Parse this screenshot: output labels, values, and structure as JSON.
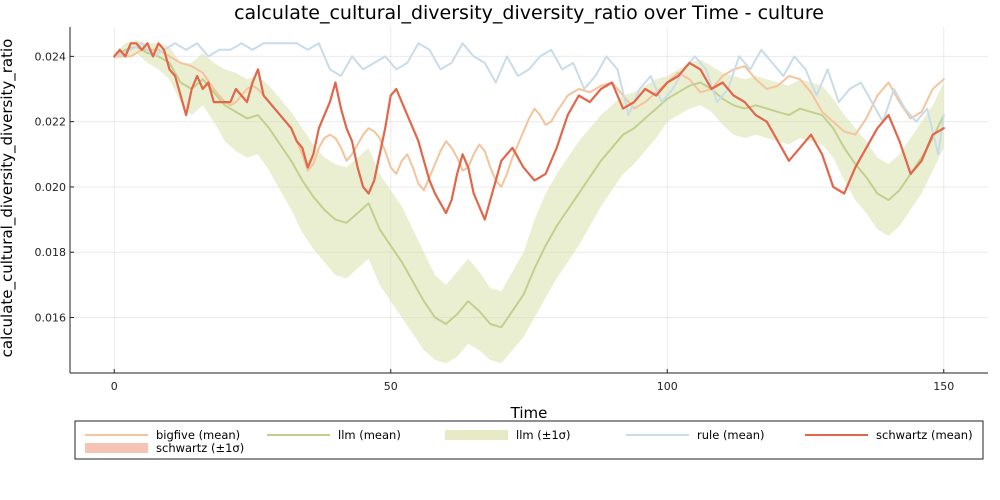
{
  "chart_data": {
    "type": "line",
    "title": "calculate_cultural_diversity_diversity_ratio over Time - culture",
    "xlabel": "Time",
    "ylabel": "calculate_cultural_diversity_diversity_ratio",
    "xlim": [
      -8,
      158
    ],
    "ylim": [
      0.0143,
      0.0249
    ],
    "xticks": [
      0,
      50,
      100,
      150
    ],
    "xtick_labels": [
      "0",
      "50",
      "100",
      "150"
    ],
    "yticks": [
      0.016,
      0.018,
      0.02,
      0.022,
      0.024
    ],
    "ytick_labels": [
      "0.016",
      "0.018",
      "0.020",
      "0.022",
      "0.024"
    ],
    "grid": true,
    "legend_position": "bottom",
    "series": [
      {
        "name": "bigfive (mean)",
        "color": "#f4c49c",
        "x": [
          0,
          3,
          5,
          8,
          10,
          12,
          14,
          15,
          16,
          18,
          20,
          21,
          22,
          23,
          24,
          25,
          26,
          27,
          28,
          29,
          30,
          31,
          32,
          33,
          34,
          35,
          36,
          37,
          38,
          39,
          40,
          41,
          42,
          43,
          44,
          45,
          46,
          47,
          48,
          49,
          50,
          51,
          52,
          53,
          54,
          55,
          56,
          57,
          58,
          59,
          60,
          61,
          62,
          63,
          64,
          65,
          66,
          67,
          68,
          69,
          70,
          71,
          72,
          73,
          74,
          75,
          76,
          77,
          78,
          79,
          80,
          82,
          84,
          86,
          88,
          90,
          92,
          94,
          96,
          98,
          100,
          102,
          104,
          106,
          108,
          110,
          112,
          114,
          116,
          118,
          120,
          122,
          124,
          126,
          128,
          130,
          132,
          134,
          136,
          138,
          140,
          142,
          144,
          146,
          148,
          150
        ],
        "values": [
          0.024,
          0.024,
          0.0242,
          0.0242,
          0.024,
          0.0238,
          0.0237,
          0.0236,
          0.0235,
          0.023,
          0.0226,
          0.0225,
          0.0226,
          0.0228,
          0.023,
          0.0231,
          0.023,
          0.0228,
          0.0226,
          0.0224,
          0.0222,
          0.022,
          0.0218,
          0.0214,
          0.021,
          0.0205,
          0.0207,
          0.0212,
          0.0215,
          0.0216,
          0.0215,
          0.0212,
          0.0208,
          0.021,
          0.0213,
          0.0216,
          0.0218,
          0.0217,
          0.0215,
          0.0211,
          0.0206,
          0.0204,
          0.0208,
          0.021,
          0.0206,
          0.0201,
          0.0199,
          0.0203,
          0.0207,
          0.0211,
          0.0214,
          0.0212,
          0.0209,
          0.0205,
          0.0206,
          0.021,
          0.0213,
          0.0211,
          0.0206,
          0.0202,
          0.02,
          0.0204,
          0.0209,
          0.0213,
          0.0217,
          0.0221,
          0.0224,
          0.0222,
          0.0219,
          0.022,
          0.0223,
          0.0228,
          0.023,
          0.0229,
          0.0231,
          0.0232,
          0.0228,
          0.0224,
          0.0226,
          0.0229,
          0.0232,
          0.0235,
          0.0233,
          0.0229,
          0.023,
          0.0234,
          0.0236,
          0.0237,
          0.0233,
          0.023,
          0.0231,
          0.0234,
          0.0233,
          0.0229,
          0.0223,
          0.022,
          0.0217,
          0.0216,
          0.0221,
          0.0228,
          0.0232,
          0.0226,
          0.0221,
          0.0223,
          0.023,
          0.0233
        ]
      },
      {
        "name": "llm (mean)",
        "color": "#c2d08e",
        "x": [
          0,
          2,
          4,
          6,
          8,
          10,
          12,
          14,
          16,
          18,
          20,
          22,
          24,
          26,
          28,
          30,
          32,
          34,
          36,
          38,
          40,
          42,
          44,
          46,
          48,
          50,
          52,
          54,
          56,
          58,
          60,
          62,
          64,
          66,
          68,
          70,
          72,
          74,
          76,
          78,
          80,
          82,
          84,
          86,
          88,
          90,
          92,
          94,
          96,
          98,
          100,
          102,
          104,
          106,
          108,
          110,
          112,
          114,
          116,
          118,
          120,
          122,
          124,
          126,
          128,
          130,
          132,
          134,
          136,
          138,
          140,
          142,
          144,
          146,
          148,
          150
        ],
        "values": [
          0.024,
          0.0242,
          0.0243,
          0.0241,
          0.024,
          0.0238,
          0.0232,
          0.023,
          0.0233,
          0.0229,
          0.0225,
          0.0223,
          0.0221,
          0.0222,
          0.0218,
          0.0213,
          0.0208,
          0.0202,
          0.0197,
          0.0193,
          0.019,
          0.0189,
          0.0192,
          0.0195,
          0.0187,
          0.0182,
          0.0177,
          0.0171,
          0.0165,
          0.016,
          0.0158,
          0.0161,
          0.0165,
          0.0162,
          0.0158,
          0.0157,
          0.0162,
          0.0167,
          0.0175,
          0.0182,
          0.0188,
          0.0193,
          0.0198,
          0.0203,
          0.0208,
          0.0212,
          0.0216,
          0.0218,
          0.0221,
          0.0224,
          0.0227,
          0.0229,
          0.0231,
          0.0232,
          0.023,
          0.0227,
          0.0225,
          0.0224,
          0.0225,
          0.0224,
          0.0223,
          0.0222,
          0.0224,
          0.0223,
          0.0222,
          0.0218,
          0.0212,
          0.0207,
          0.0203,
          0.0198,
          0.0196,
          0.0199,
          0.0204,
          0.0209,
          0.0215,
          0.0222
        ]
      },
      {
        "name": "rule (mean)",
        "color": "#c9dcea",
        "x": [
          0,
          3,
          5,
          7,
          9,
          11,
          13,
          15,
          17,
          19,
          21,
          23,
          25,
          27,
          29,
          31,
          33,
          35,
          37,
          39,
          41,
          43,
          45,
          47,
          49,
          51,
          53,
          55,
          57,
          59,
          61,
          63,
          65,
          67,
          69,
          71,
          73,
          75,
          77,
          79,
          81,
          83,
          85,
          87,
          89,
          91,
          93,
          95,
          97,
          99,
          101,
          103,
          105,
          107,
          109,
          111,
          113,
          115,
          117,
          119,
          121,
          123,
          125,
          127,
          129,
          131,
          133,
          135,
          137,
          139,
          141,
          143,
          145,
          147,
          149,
          150
        ],
        "values": [
          0.024,
          0.0242,
          0.0244,
          0.024,
          0.0242,
          0.0244,
          0.0242,
          0.0244,
          0.024,
          0.0242,
          0.0242,
          0.0244,
          0.0242,
          0.0244,
          0.0244,
          0.0244,
          0.0244,
          0.0242,
          0.0244,
          0.0236,
          0.0234,
          0.024,
          0.0236,
          0.0238,
          0.024,
          0.0236,
          0.0238,
          0.0244,
          0.0242,
          0.0236,
          0.0238,
          0.0244,
          0.024,
          0.0238,
          0.0232,
          0.024,
          0.0234,
          0.0236,
          0.024,
          0.0242,
          0.0236,
          0.0238,
          0.023,
          0.0234,
          0.024,
          0.0236,
          0.0222,
          0.023,
          0.0234,
          0.0226,
          0.023,
          0.0236,
          0.024,
          0.0236,
          0.0226,
          0.023,
          0.024,
          0.0236,
          0.0242,
          0.0238,
          0.0234,
          0.024,
          0.0236,
          0.0228,
          0.0236,
          0.0226,
          0.023,
          0.0232,
          0.0226,
          0.022,
          0.023,
          0.0224,
          0.022,
          0.0224,
          0.021,
          0.0222
        ]
      },
      {
        "name": "schwartz (mean)",
        "color": "#e2664a",
        "x": [
          0,
          1,
          2,
          3,
          4,
          5,
          6,
          7,
          8,
          9,
          10,
          11,
          12,
          13,
          14,
          15,
          16,
          17,
          18,
          19,
          20,
          21,
          22,
          23,
          24,
          25,
          26,
          27,
          28,
          29,
          30,
          31,
          32,
          33,
          34,
          35,
          36,
          37,
          38,
          39,
          40,
          41,
          42,
          43,
          44,
          45,
          46,
          47,
          48,
          49,
          50,
          51,
          52,
          53,
          54,
          55,
          56,
          57,
          58,
          59,
          60,
          61,
          62,
          63,
          64,
          65,
          66,
          67,
          68,
          69,
          70,
          72,
          74,
          76,
          78,
          80,
          82,
          84,
          86,
          88,
          90,
          92,
          94,
          96,
          98,
          100,
          102,
          104,
          106,
          108,
          110,
          112,
          114,
          116,
          118,
          120,
          122,
          124,
          126,
          128,
          130,
          132,
          134,
          136,
          138,
          140,
          142,
          144,
          146,
          148,
          150
        ],
        "values": [
          0.024,
          0.0242,
          0.024,
          0.0244,
          0.0244,
          0.0242,
          0.0244,
          0.024,
          0.0244,
          0.0242,
          0.0236,
          0.0234,
          0.0228,
          0.0222,
          0.023,
          0.0234,
          0.023,
          0.0232,
          0.0226,
          0.0226,
          0.0226,
          0.0226,
          0.023,
          0.0228,
          0.0226,
          0.0232,
          0.0236,
          0.0228,
          0.0226,
          0.0224,
          0.0222,
          0.022,
          0.0218,
          0.0214,
          0.0212,
          0.0206,
          0.021,
          0.0218,
          0.0222,
          0.0226,
          0.0232,
          0.0224,
          0.0218,
          0.0214,
          0.0206,
          0.02,
          0.0198,
          0.0202,
          0.021,
          0.0218,
          0.0228,
          0.023,
          0.0226,
          0.0222,
          0.0218,
          0.0214,
          0.0208,
          0.0202,
          0.0198,
          0.0195,
          0.0192,
          0.0196,
          0.0204,
          0.021,
          0.0206,
          0.0198,
          0.0194,
          0.019,
          0.0196,
          0.0202,
          0.0208,
          0.0212,
          0.0206,
          0.0202,
          0.0204,
          0.0212,
          0.0222,
          0.0228,
          0.0226,
          0.023,
          0.0232,
          0.0224,
          0.0226,
          0.023,
          0.0228,
          0.0232,
          0.0234,
          0.0238,
          0.0236,
          0.023,
          0.0232,
          0.0228,
          0.0226,
          0.0222,
          0.022,
          0.0214,
          0.0208,
          0.0212,
          0.0216,
          0.021,
          0.02,
          0.0198,
          0.0206,
          0.0212,
          0.0218,
          0.0222,
          0.0214,
          0.0204,
          0.0208,
          0.0216,
          0.0218
        ]
      }
    ],
    "bands": [
      {
        "name": "llm (±1σ)",
        "color": "#d7e0a6",
        "opacity": 0.5,
        "x": [
          0,
          2,
          4,
          6,
          8,
          10,
          12,
          14,
          16,
          18,
          20,
          22,
          24,
          26,
          28,
          30,
          32,
          34,
          36,
          38,
          40,
          42,
          44,
          46,
          48,
          50,
          52,
          54,
          56,
          58,
          60,
          62,
          64,
          66,
          68,
          70,
          72,
          74,
          76,
          78,
          80,
          82,
          84,
          86,
          88,
          90,
          92,
          94,
          96,
          98,
          100,
          102,
          104,
          106,
          108,
          110,
          112,
          114,
          116,
          118,
          120,
          122,
          124,
          126,
          128,
          130,
          132,
          134,
          136,
          138,
          140,
          142,
          144,
          146,
          148,
          150
        ],
        "lower": [
          0.0239,
          0.024,
          0.0241,
          0.0238,
          0.0236,
          0.0233,
          0.0226,
          0.0222,
          0.0225,
          0.022,
          0.0214,
          0.0211,
          0.0209,
          0.021,
          0.0205,
          0.0199,
          0.0193,
          0.0186,
          0.0181,
          0.0177,
          0.0173,
          0.0172,
          0.0175,
          0.0178,
          0.017,
          0.0165,
          0.016,
          0.0155,
          0.015,
          0.0147,
          0.0146,
          0.0148,
          0.0152,
          0.015,
          0.0147,
          0.0146,
          0.015,
          0.0154,
          0.016,
          0.0166,
          0.0172,
          0.0177,
          0.0182,
          0.0188,
          0.0194,
          0.0199,
          0.0204,
          0.0207,
          0.0211,
          0.0215,
          0.022,
          0.0222,
          0.0224,
          0.0225,
          0.0223,
          0.0219,
          0.0216,
          0.0215,
          0.0216,
          0.0215,
          0.0214,
          0.0213,
          0.0215,
          0.0214,
          0.0213,
          0.0209,
          0.0202,
          0.0196,
          0.0192,
          0.0187,
          0.0185,
          0.0188,
          0.0193,
          0.0198,
          0.0205,
          0.0212
        ],
        "upper": [
          0.0241,
          0.0244,
          0.0245,
          0.0244,
          0.0244,
          0.0243,
          0.0238,
          0.0238,
          0.0241,
          0.0238,
          0.0236,
          0.0235,
          0.0233,
          0.0234,
          0.0231,
          0.0227,
          0.0223,
          0.0218,
          0.0213,
          0.0209,
          0.0207,
          0.0206,
          0.0209,
          0.0212,
          0.0204,
          0.0199,
          0.0194,
          0.0187,
          0.018,
          0.0173,
          0.017,
          0.0174,
          0.0178,
          0.0174,
          0.0169,
          0.0168,
          0.0174,
          0.018,
          0.019,
          0.0198,
          0.0204,
          0.0209,
          0.0214,
          0.0218,
          0.0222,
          0.0225,
          0.0228,
          0.0229,
          0.0231,
          0.0233,
          0.0234,
          0.0236,
          0.0238,
          0.0239,
          0.0237,
          0.0235,
          0.0234,
          0.0233,
          0.0234,
          0.0233,
          0.0232,
          0.0231,
          0.0233,
          0.0232,
          0.0231,
          0.0227,
          0.0222,
          0.0218,
          0.0214,
          0.0209,
          0.0207,
          0.021,
          0.0215,
          0.022,
          0.0225,
          0.0232
        ]
      }
    ],
    "legend": [
      {
        "label": "bigfive (mean)",
        "kind": "line",
        "color": "#f4c49c"
      },
      {
        "label": "llm (mean)",
        "kind": "line",
        "color": "#c2d08e"
      },
      {
        "label": "llm (±1σ)",
        "kind": "band",
        "color": "#e6ebc6"
      },
      {
        "label": "rule (mean)",
        "kind": "line",
        "color": "#c9dcea"
      },
      {
        "label": "schwartz (mean)",
        "kind": "line",
        "color": "#e2664a"
      },
      {
        "label": "schwartz (±1σ)",
        "kind": "band",
        "color": "#f6c4b4"
      }
    ]
  }
}
